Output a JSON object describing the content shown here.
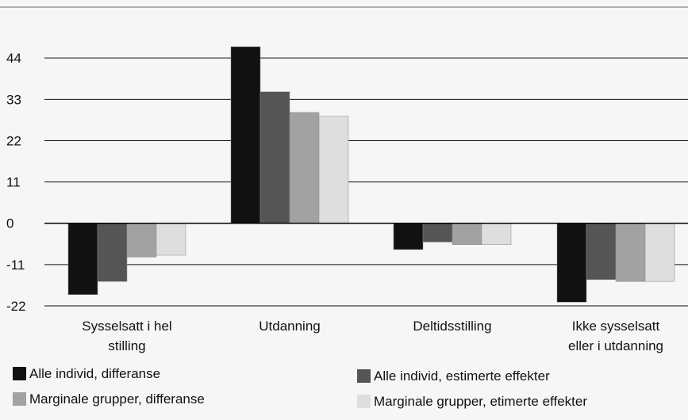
{
  "chart_data": {
    "type": "bar",
    "categories": [
      [
        "Sysselsatt i hel",
        "stilling"
      ],
      [
        "Utdanning"
      ],
      [
        "Deltidsstilling"
      ],
      [
        "Ikke sysselsatt",
        "eller i utdanning"
      ]
    ],
    "series": [
      {
        "name": "Alle individ, differanse",
        "color": "#111111",
        "values": [
          -19,
          47,
          -7,
          -21
        ]
      },
      {
        "name": "Alle individ, estimerte effekter",
        "color": "#555555",
        "values": [
          -15.5,
          35,
          -5,
          -15
        ]
      },
      {
        "name": "Marginale grupper, differanse",
        "color": "#a2a2a2",
        "values": [
          -9,
          29.5,
          -5.7,
          -15.5
        ]
      },
      {
        "name": "Marginale grupper, etimerte effekter",
        "color": "#dedede",
        "values": [
          -8.5,
          28.5,
          -5.7,
          -15.5
        ]
      }
    ],
    "yticks": [
      44,
      33,
      22,
      11,
      0,
      -11,
      -22
    ],
    "ylim": [
      -22,
      51
    ],
    "grid": true,
    "legend": "bottom"
  }
}
